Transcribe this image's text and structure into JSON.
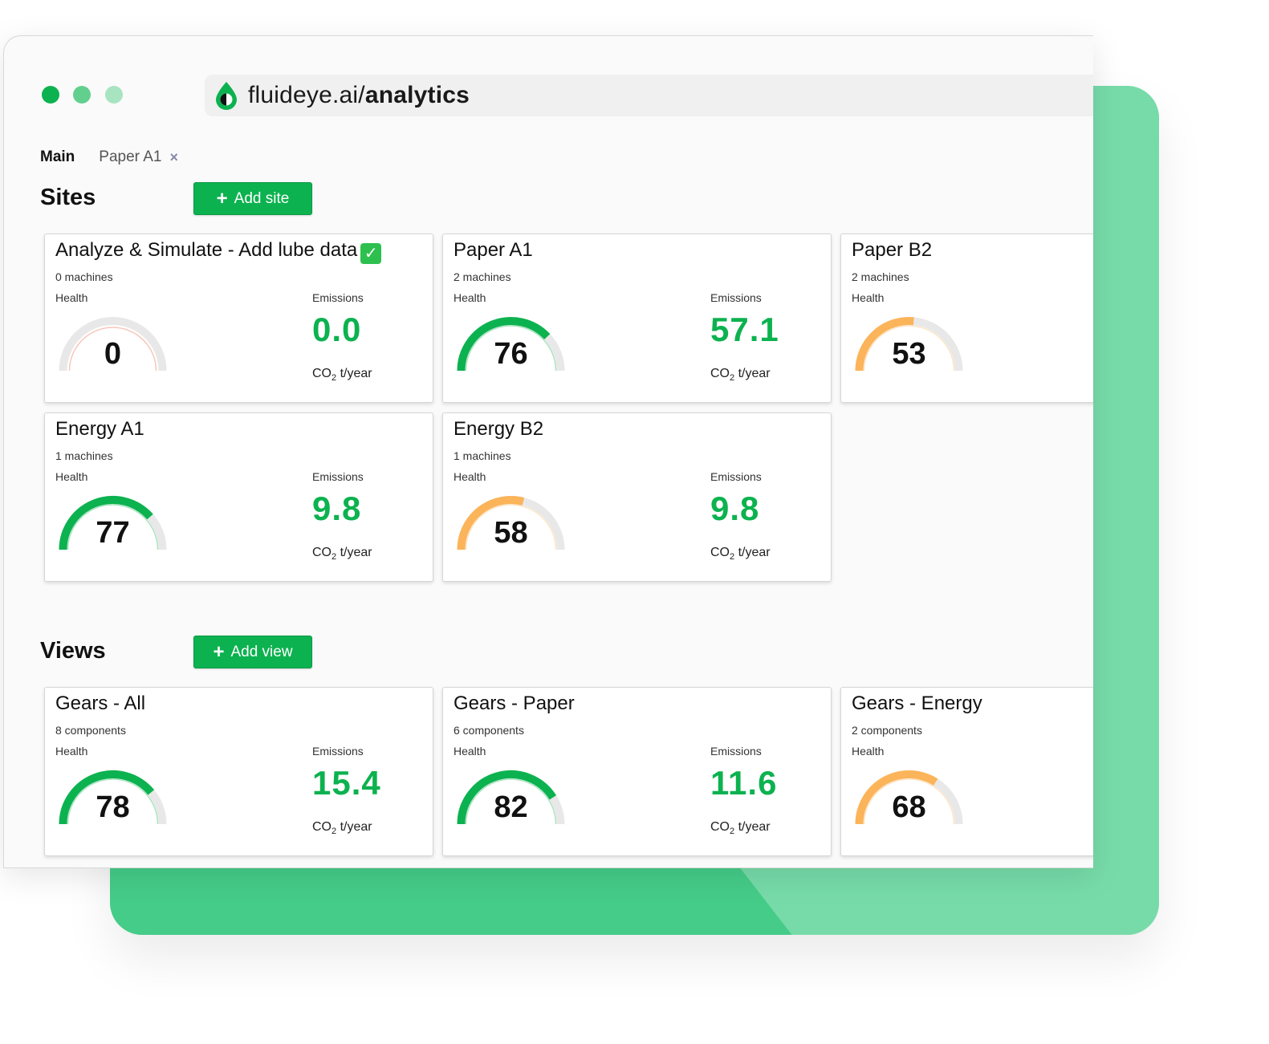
{
  "browser": {
    "url_prefix": "fluideye.ai/",
    "url_path": "analytics"
  },
  "tabs": {
    "main": "Main",
    "paper": "Paper A1",
    "close": "×"
  },
  "sites": {
    "title": "Sites",
    "add_label": "Add site",
    "cards": [
      {
        "title": "Analyze & Simulate - Add lube data",
        "sub": "0 machines",
        "health": 0,
        "health_label": "Health",
        "emissions_label": "Emissions",
        "emissions": "0.0",
        "has_check": true
      },
      {
        "title": "Paper A1",
        "sub": "2 machines",
        "health": 76,
        "health_label": "Health",
        "emissions_label": "Emissions",
        "emissions": "57.1"
      },
      {
        "title": "Paper B2",
        "sub": "2 machines",
        "health": 53,
        "health_label": "Health"
      },
      {
        "title": "Energy A1",
        "sub": "1 machines",
        "health": 77,
        "health_label": "Health",
        "emissions_label": "Emissions",
        "emissions": "9.8"
      },
      {
        "title": "Energy B2",
        "sub": "1 machines",
        "health": 58,
        "health_label": "Health",
        "emissions_label": "Emissions",
        "emissions": "9.8"
      }
    ]
  },
  "views": {
    "title": "Views",
    "add_label": "Add view",
    "cards": [
      {
        "title": "Gears - All",
        "sub": "8 components",
        "health": 78,
        "health_label": "Health",
        "emissions_label": "Emissions",
        "emissions": "15.4"
      },
      {
        "title": "Gears - Paper",
        "sub": "6 components",
        "health": 82,
        "health_label": "Health",
        "emissions_label": "Emissions",
        "emissions": "11.6"
      },
      {
        "title": "Gears - Energy",
        "sub": "2 components",
        "health": 68,
        "health_label": "Health"
      }
    ]
  },
  "units": {
    "co": "CO",
    "two": "2",
    "rest": " t/year"
  },
  "colors": {
    "good": "#0cb24f",
    "warn": "#fbb45a",
    "track": "#e8e8e8"
  }
}
